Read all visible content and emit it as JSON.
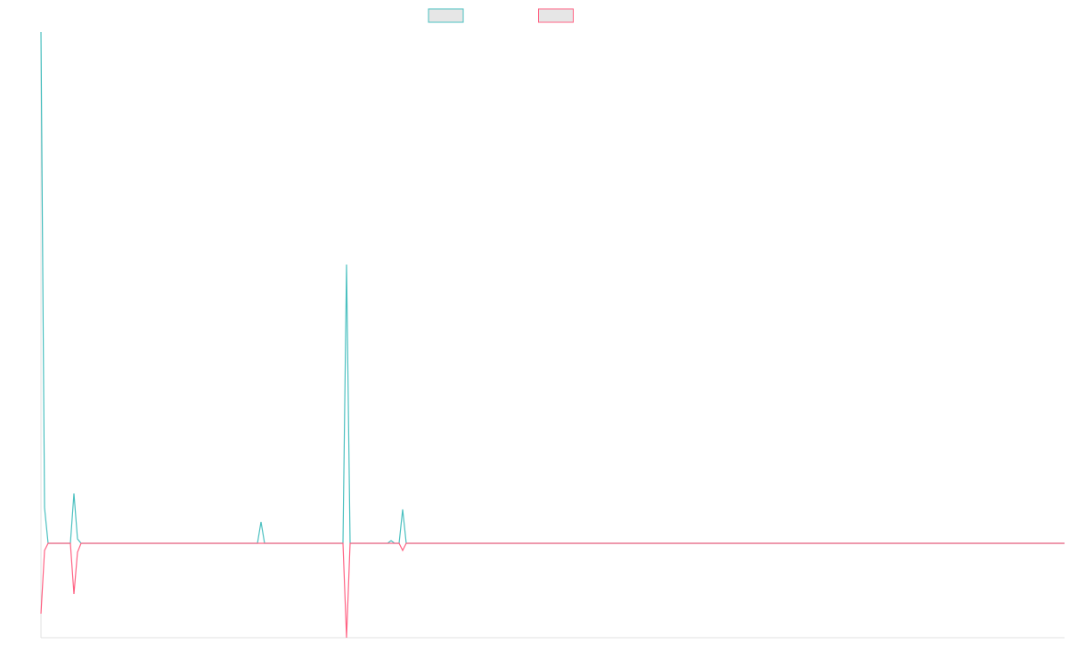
{
  "chart_data": {
    "type": "line",
    "xlim": [
      0,
      1149
    ],
    "ylim": [
      -106,
      574
    ],
    "series": [
      {
        "color": "#4bc0c0",
        "x": [
          0,
          4,
          8,
          33,
          37,
          41,
          45,
          243,
          247,
          251,
          339,
          343,
          347,
          389,
          393,
          397,
          402,
          406,
          410,
          1149
        ],
        "values": [
          574,
          40,
          0,
          0,
          56,
          5,
          0,
          0,
          24,
          0,
          0,
          313,
          0,
          0,
          3,
          0,
          0,
          38,
          0,
          0
        ]
      },
      {
        "color": "#ff6384",
        "x": [
          0,
          4,
          8,
          33,
          37,
          41,
          45,
          339,
          343,
          347,
          402,
          406,
          410,
          1149
        ],
        "values": [
          -79,
          -8,
          0,
          0,
          -57,
          -10,
          0,
          0,
          -106,
          0,
          0,
          -8,
          0,
          0
        ]
      }
    ]
  }
}
